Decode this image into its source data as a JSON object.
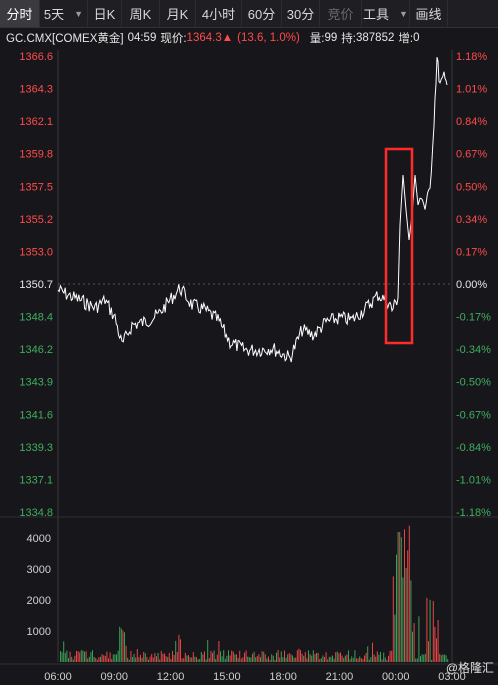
{
  "toolbar": {
    "tabs": [
      "分时",
      "5天",
      "日K",
      "周K",
      "月K",
      "4小时",
      "60分",
      "30分",
      "竞价",
      "工具",
      "画线"
    ],
    "active_index": 0,
    "dim_index": 8
  },
  "info": {
    "symbol": "GC.CMX[COMEX黄金]",
    "time": "04:59",
    "price_label": "现价:",
    "price": "1364.3",
    "change": "(13.6, 1.0%)",
    "volume_label": "量:",
    "volume": "99",
    "oi_label": "持:",
    "oi": "387852",
    "inc_label": "增:",
    "inc": "0"
  },
  "colors": {
    "up": "#ff4b4b",
    "down": "#3fae5f",
    "neutral": "#e6e6e6",
    "line": "#ffffff",
    "highlight": "#ff2a2a"
  },
  "price_axis": {
    "left": [
      "1366.6",
      "1364.3",
      "1362.1",
      "1359.8",
      "1357.5",
      "1355.2",
      "1353.0",
      "1350.7",
      "1348.4",
      "1346.2",
      "1343.9",
      "1341.6",
      "1339.3",
      "1337.1",
      "1334.8"
    ],
    "right": [
      "1.18%",
      "1.01%",
      "0.84%",
      "0.67%",
      "0.50%",
      "0.34%",
      "0.17%",
      "0.00%",
      "-0.17%",
      "-0.34%",
      "-0.50%",
      "-0.67%",
      "-0.84%",
      "-1.01%",
      "-1.18%"
    ],
    "ref_index": 7
  },
  "volume_axis": [
    "4000",
    "3000",
    "2000",
    "1000"
  ],
  "time_axis": [
    "06:00",
    "09:00",
    "12:00",
    "15:00",
    "18:00",
    "21:00",
    "00:00",
    "03:00"
  ],
  "watermark": "格隆汇"
}
